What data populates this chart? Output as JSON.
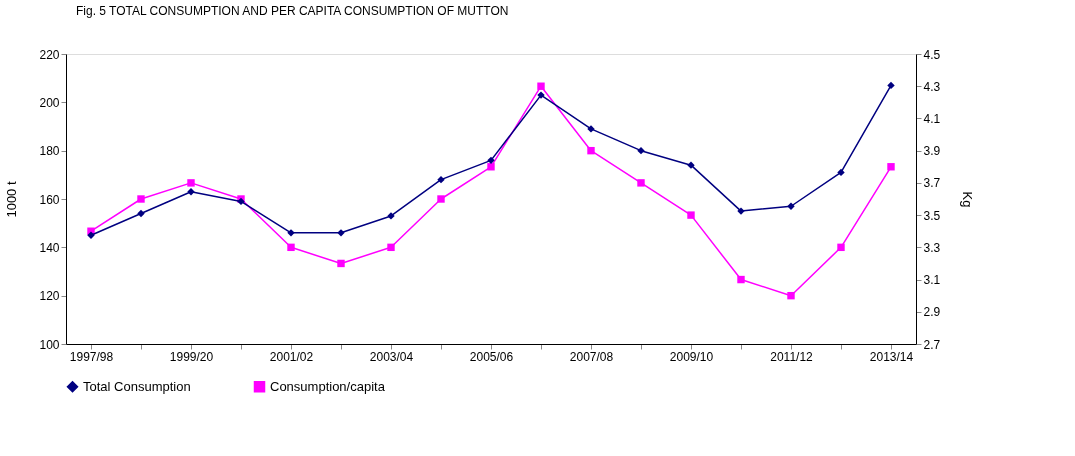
{
  "chart_data": {
    "type": "line",
    "title": "Fig. 5 TOTAL CONSUMPTION AND PER CAPITA CONSUMPTION OF MUTTON",
    "ylabel": "1000 t",
    "y2label": "Kg",
    "categories": [
      "1997/98",
      null,
      "1999/20",
      null,
      "2001/02",
      null,
      "2003/04",
      null,
      "2005/06",
      null,
      "2007/08",
      null,
      "2009/10",
      null,
      "2011/12",
      null,
      "2013/14"
    ],
    "series": [
      {
        "name": "Total Consumption",
        "color": "#000080",
        "marker": "diamond",
        "values": [
          145,
          154,
          163,
          159,
          146,
          146,
          153,
          168,
          176,
          203,
          189,
          180,
          174,
          155,
          157,
          171,
          207
        ]
      },
      {
        "name": "Consumption/capita",
        "color": "#ff00ff",
        "marker": "square",
        "axis": "y2",
        "values": [
          3.4,
          3.6,
          3.7,
          3.6,
          3.3,
          3.2,
          3.3,
          3.6,
          3.8,
          4.3,
          3.9,
          3.7,
          3.5,
          3.1,
          3.0,
          3.3,
          3.8
        ]
      }
    ],
    "ylim": [
      100,
      220
    ],
    "yticks": [
      100,
      120,
      140,
      160,
      180,
      200,
      220
    ],
    "y2lim": [
      2.7,
      4.5
    ],
    "y2ticks": [
      2.7,
      2.9,
      3.1,
      3.3,
      3.5,
      3.7,
      3.9,
      4.1,
      4.3,
      4.5
    ],
    "grid": false,
    "legend": "bottom"
  }
}
